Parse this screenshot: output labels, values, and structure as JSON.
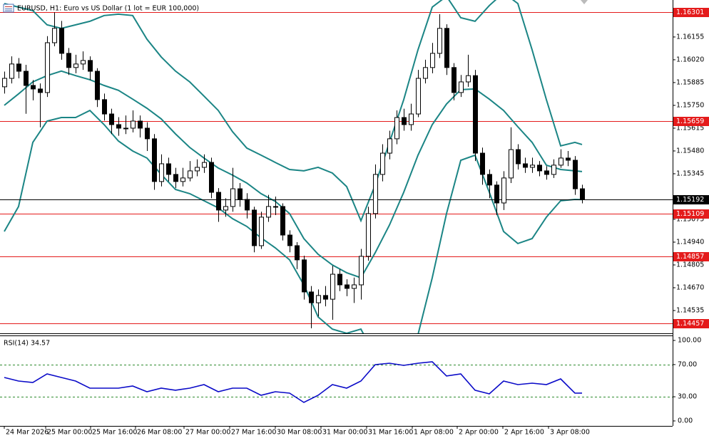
{
  "chart_data": {
    "type": "candlestick",
    "title": "EURUSD, H1:  Euro vs US Dollar (1 lot = EUR 100,000)",
    "open": [
      1.1586,
      1.1591,
      1.15995,
      1.15952,
      1.15868,
      1.15847,
      1.15826,
      1.16121,
      1.16206,
      1.16058,
      1.15974,
      1.15995,
      1.16016,
      1.15952,
      1.15784,
      1.15699,
      1.15636,
      1.15615,
      1.15615,
      1.15657,
      1.15615,
      1.15552,
      1.15299,
      1.15404,
      1.15341,
      1.15299,
      1.1532,
      1.15362,
      1.15383,
      1.15412,
      1.15235,
      1.1513,
      1.15151,
      1.15256,
      1.15193,
      1.1513,
      1.14919,
      1.15088,
      1.15151,
      1.15151,
      1.14982,
      1.14919,
      1.14835,
      1.14645,
      1.14581,
      1.14624,
      1.14602,
      1.1475,
      1.14687,
      1.14666,
      1.14687,
      1.14856,
      1.15109,
      1.15341,
      1.15467,
      1.15552,
      1.15678,
      1.15636,
      1.15699,
      1.1591,
      1.15974,
      1.16058,
      1.16206,
      1.15974,
      1.15826,
      1.15889,
      1.15926,
      1.15467,
      1.15341,
      1.15278,
      1.15172,
      1.1532,
      1.15488,
      1.15404,
      1.15383,
      1.15396,
      1.15362,
      1.15341,
      1.15396,
      1.15438,
      1.15425,
      1.15256
    ],
    "high": [
      1.1595,
      1.1604,
      1.1603,
      1.1599,
      1.159,
      1.1588,
      1.1616,
      1.16301,
      1.1625,
      1.1609,
      1.1605,
      1.1607,
      1.1604,
      1.1597,
      1.1582,
      1.1573,
      1.1568,
      1.1569,
      1.1572,
      1.1569,
      1.1565,
      1.1558,
      1.1546,
      1.1544,
      1.1538,
      1.1538,
      1.1542,
      1.1543,
      1.1546,
      1.1544,
      1.1526,
      1.152,
      1.1538,
      1.1529,
      1.1523,
      1.1515,
      1.1512,
      1.1522,
      1.1521,
      1.1517,
      1.1501,
      1.1494,
      1.1486,
      1.1468,
      1.1466,
      1.1468,
      1.148,
      1.1478,
      1.1472,
      1.1473,
      1.149,
      1.1515,
      1.154,
      1.1552,
      1.156,
      1.1572,
      1.1573,
      1.1576,
      1.1596,
      1.1602,
      1.1612,
      1.1629,
      1.1623,
      1.16,
      1.1593,
      1.1605,
      1.1596,
      1.155,
      1.1537,
      1.153,
      1.1536,
      1.1562,
      1.1552,
      1.1544,
      1.1544,
      1.1542,
      1.1539,
      1.1543,
      1.1549,
      1.1548,
      1.1545,
      1.1528
    ],
    "low": [
      1.1582,
      1.1588,
      1.1591,
      1.157,
      1.1578,
      1.1562,
      1.158,
      1.161,
      1.1602,
      1.1593,
      1.1594,
      1.1596,
      1.159,
      1.1574,
      1.1566,
      1.1558,
      1.1557,
      1.1558,
      1.1559,
      1.1556,
      1.1548,
      1.1525,
      1.1527,
      1.153,
      1.1526,
      1.1527,
      1.153,
      1.1533,
      1.1535,
      1.152,
      1.1506,
      1.1509,
      1.1512,
      1.1515,
      1.1508,
      1.1488,
      1.149,
      1.1506,
      1.151,
      1.1495,
      1.1488,
      1.1478,
      1.146,
      1.1443,
      1.145,
      1.1456,
      1.1448,
      1.1465,
      1.1462,
      1.1458,
      1.146,
      1.1483,
      1.1508,
      1.153,
      1.1543,
      1.1552,
      1.156,
      1.156,
      1.1568,
      1.1588,
      1.1594,
      1.1603,
      1.1593,
      1.1578,
      1.158,
      1.1586,
      1.1542,
      1.1528,
      1.152,
      1.151,
      1.1513,
      1.1529,
      1.1537,
      1.1535,
      1.1535,
      1.1533,
      1.1531,
      1.1532,
      1.1538,
      1.1539,
      1.1522,
      1.1517
    ],
    "close": [
      1.1591,
      1.15995,
      1.15952,
      1.15868,
      1.15847,
      1.15826,
      1.16121,
      1.16206,
      1.16058,
      1.15974,
      1.15995,
      1.16016,
      1.15952,
      1.15784,
      1.15699,
      1.15636,
      1.15615,
      1.15615,
      1.15657,
      1.15615,
      1.15552,
      1.15299,
      1.15404,
      1.15341,
      1.15299,
      1.1532,
      1.15362,
      1.15383,
      1.15412,
      1.15235,
      1.1513,
      1.15151,
      1.15256,
      1.15193,
      1.1513,
      1.14919,
      1.15088,
      1.15151,
      1.15151,
      1.14982,
      1.14919,
      1.14835,
      1.14645,
      1.14581,
      1.14624,
      1.14602,
      1.1475,
      1.14687,
      1.14666,
      1.14687,
      1.14856,
      1.15109,
      1.15341,
      1.15467,
      1.15552,
      1.15678,
      1.15636,
      1.15699,
      1.1591,
      1.15974,
      1.16058,
      1.16206,
      1.15974,
      1.15826,
      1.15889,
      1.15926,
      1.15467,
      1.15341,
      1.15278,
      1.15172,
      1.1532,
      1.15488,
      1.15404,
      1.15383,
      1.15396,
      1.15362,
      1.15341,
      1.15396,
      1.15438,
      1.15425,
      1.15256,
      1.15192
    ],
    "up_color": "#ffffff",
    "down_color": "#000000",
    "xlim": [
      -0.6,
      93.7
    ],
    "xticks": [
      {
        "value": 0,
        "label": "24 Mar 2026"
      },
      {
        "value": 5.8,
        "label": "25 Mar 00:00"
      },
      {
        "value": 12.1,
        "label": "25 Mar 16:00"
      },
      {
        "value": 18.4,
        "label": "26 Mar 08:00"
      },
      {
        "value": 25.2,
        "label": "27 Mar 00:00"
      },
      {
        "value": 31.6,
        "label": "27 Mar 16:00"
      },
      {
        "value": 38,
        "label": "30 Mar 08:00"
      },
      {
        "value": 44.4,
        "label": "31 Mar 00:00"
      },
      {
        "value": 50.8,
        "label": "31 Mar 16:00"
      },
      {
        "value": 57.2,
        "label": "1 Apr 08:00"
      },
      {
        "value": 63.5,
        "label": "2 Apr 00:00"
      },
      {
        "value": 69.9,
        "label": "2 Apr 16:00"
      },
      {
        "value": 76.3,
        "label": "3 Apr 08:00"
      }
    ],
    "ylim": [
      1.144,
      1.16374
    ],
    "yticks": [
      {
        "value": 1.16155,
        "label": "1.16155"
      },
      {
        "value": 1.1602,
        "label": "1.16020"
      },
      {
        "value": 1.15885,
        "label": "1.15885"
      },
      {
        "value": 1.1575,
        "label": "1.15750"
      },
      {
        "value": 1.15615,
        "label": "1.15615"
      },
      {
        "value": 1.1548,
        "label": "1.15480"
      },
      {
        "value": 1.15345,
        "label": "1.15345"
      },
      {
        "value": 1.15075,
        "label": "1.15075"
      },
      {
        "value": 1.1494,
        "label": "1.14940"
      },
      {
        "value": 1.14805,
        "label": "1.14805"
      },
      {
        "value": 1.1467,
        "label": "1.14670"
      },
      {
        "value": 1.14535,
        "label": "1.14535"
      }
    ],
    "levels": [
      1.16301,
      1.15659,
      1.15109,
      1.14857,
      1.14457
    ],
    "level_color": "#e41b1b",
    "last_price": 1.15192,
    "bands": {
      "x": [
        0,
        2,
        4,
        6,
        8,
        10,
        12,
        14,
        16,
        18,
        20,
        22,
        24,
        26,
        28,
        30,
        32,
        34,
        36,
        38,
        40,
        42,
        44,
        46,
        48,
        50,
        52,
        54,
        56,
        58,
        60,
        62,
        64,
        66,
        68,
        70,
        72,
        74,
        76,
        78,
        80,
        81
      ],
      "color": "#1b8585",
      "series": [
        {
          "values": [
            1.16353,
            1.16332,
            1.16311,
            1.16227,
            1.16206,
            1.16227,
            1.16248,
            1.16282,
            1.1629,
            1.16282,
            1.16142,
            1.16037,
            1.15953,
            1.15889,
            1.15805,
            1.1572,
            1.15594,
            1.15497,
            1.15455,
            1.15412,
            1.1537,
            1.15362,
            1.15383,
            1.15349,
            1.15269,
            1.15067,
            1.15278,
            1.15531,
            1.15784,
            1.16079,
            1.16332,
            1.16396,
            1.16269,
            1.16248,
            1.16341,
            1.16417,
            1.16353,
            1.16079,
            1.15784,
            1.1551,
            1.15531,
            1.15518
          ]
        },
        {
          "values": [
            1.1575,
            1.15818,
            1.15889,
            1.15926,
            1.15953,
            1.15926,
            1.15902,
            1.15868,
            1.15839,
            1.15787,
            1.15733,
            1.1567,
            1.15581,
            1.15501,
            1.15438,
            1.15379,
            1.15337,
            1.1529,
            1.15227,
            1.15181,
            1.15109,
            1.14961,
            1.14868,
            1.14805,
            1.14759,
            1.14729,
            1.14877,
            1.15041,
            1.15235,
            1.15455,
            1.15636,
            1.15758,
            1.15843,
            1.15847,
            1.15787,
            1.1572,
            1.15623,
            1.15531,
            1.15396,
            1.1537,
            1.15362,
            1.15358
          ]
        },
        {
          "values": [
            1.15003,
            1.15151,
            1.15531,
            1.15657,
            1.15678,
            1.15678,
            1.1572,
            1.15636,
            1.15539,
            1.1548,
            1.15438,
            1.15341,
            1.15252,
            1.15227,
            1.15185,
            1.15143,
            1.15079,
            1.15033,
            1.14965,
            1.14906,
            1.14835,
            1.14687,
            1.14497,
            1.14425,
            1.144,
            1.14425,
            1.14265,
            1.14181,
            1.14138,
            1.14392,
            1.14729,
            1.15109,
            1.15425,
            1.15455,
            1.15235,
            1.15003,
            1.14932,
            1.14961,
            1.15088,
            1.15185,
            1.15193,
            1.15192
          ]
        }
      ]
    },
    "rsi": {
      "title": "RSI(14) 34.57",
      "color": "#0a0ac8",
      "level_color": "#2e8b2e",
      "ylim": [
        0,
        100
      ],
      "yticks": [
        {
          "value": 100,
          "label": "100.00"
        },
        {
          "value": 70,
          "label": "70.00"
        },
        {
          "value": 30,
          "label": "30.00"
        },
        {
          "value": 0,
          "label": "0.00"
        }
      ],
      "levels": [
        70,
        30
      ],
      "values": [
        54.0,
        49.6,
        47.8,
        58.4,
        54.0,
        49.6,
        40.7,
        40.7,
        40.7,
        43.4,
        36.3,
        40.7,
        38.1,
        40.7,
        45.1,
        36.3,
        40.7,
        40.7,
        31.9,
        36.3,
        34.5,
        23.0,
        31.9,
        45.1,
        40.7,
        49.6,
        69.9,
        71.7,
        69.0,
        71.7,
        73.5,
        55.8,
        58.4,
        38.1,
        33.6,
        49.6,
        45.1,
        46.9,
        45.1,
        52.2,
        34.5,
        34.57
      ]
    }
  }
}
